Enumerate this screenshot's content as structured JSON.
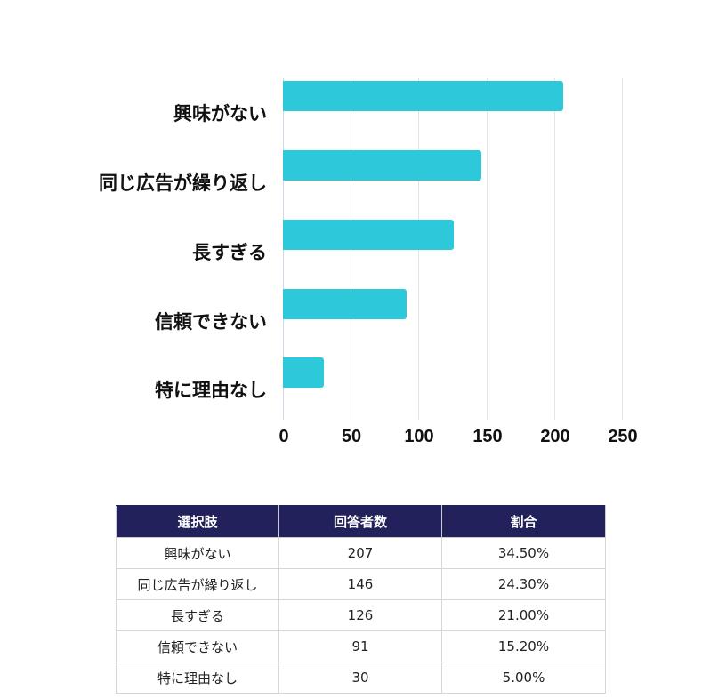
{
  "chart_data": {
    "type": "bar",
    "orientation": "horizontal",
    "title": "",
    "xlabel": "",
    "ylabel": "",
    "categories": [
      "興味がない",
      "同じ広告が繰り返し",
      "長すぎる",
      "信頼できない",
      "特に理由なし"
    ],
    "values": [
      207,
      146,
      126,
      91,
      30
    ],
    "xlim": [
      0,
      250
    ],
    "xticks": [
      "0",
      "50",
      "100",
      "150",
      "200",
      "250"
    ],
    "grid": true,
    "legend": null,
    "bar_color": "#2ec8db"
  },
  "table": {
    "headers": [
      "選択肢",
      "回答者数",
      "割合"
    ],
    "header_color": "#22215b",
    "rows": [
      [
        "興味がない",
        "207",
        "34.50%"
      ],
      [
        "同じ広告が繰り返し",
        "146",
        "24.30%"
      ],
      [
        "長すぎる",
        "126",
        "21.00%"
      ],
      [
        "信頼できない",
        "91",
        "15.20%"
      ],
      [
        "特に理由なし",
        "30",
        "5.00%"
      ]
    ]
  }
}
